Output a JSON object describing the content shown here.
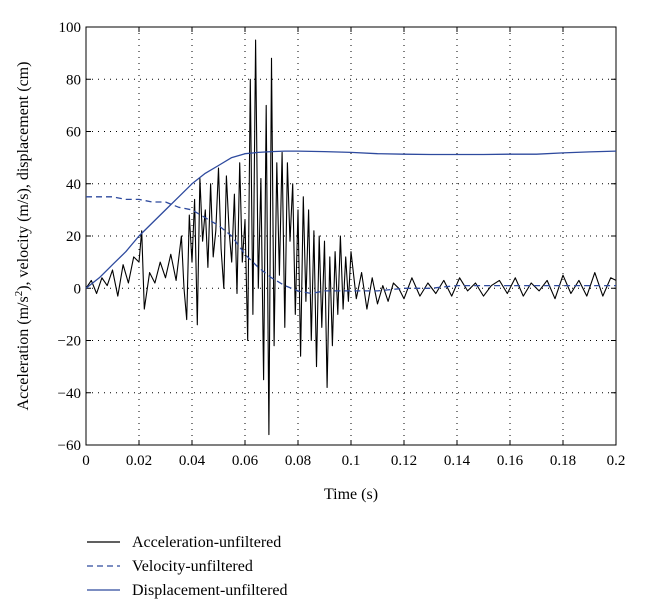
{
  "chart_data": {
    "type": "line",
    "xlabel": "Time (s)",
    "ylabel": {
      "before": "Acceleration (m/s",
      "sup": "2",
      "after": "), velocity (m/s), displacement (cm)"
    },
    "xlim": [
      0,
      0.2
    ],
    "ylim": [
      -60,
      100
    ],
    "x_ticks": [
      0,
      0.02,
      0.04,
      0.06,
      0.08,
      0.1,
      0.12,
      0.14,
      0.16,
      0.18,
      0.2
    ],
    "x_tick_labels": [
      "0",
      "0.02",
      "0.04",
      "0.06",
      "0.08",
      "0.1",
      "0.12",
      "0.14",
      "0.16",
      "0.18",
      "0.2"
    ],
    "y_ticks": [
      -60,
      -40,
      -20,
      0,
      20,
      40,
      60,
      80,
      100
    ],
    "y_tick_labels": [
      "−60",
      "−40",
      "−20",
      "0",
      "20",
      "40",
      "60",
      "80",
      "100"
    ],
    "grid": "dotted",
    "legend_position": "below",
    "series": [
      {
        "name": "Acceleration-unfiltered",
        "color": "#000000",
        "style": "solid",
        "x": [
          0,
          0.002,
          0.004,
          0.006,
          0.008,
          0.01,
          0.012,
          0.014,
          0.016,
          0.018,
          0.02,
          0.021,
          0.022,
          0.024,
          0.026,
          0.028,
          0.03,
          0.032,
          0.034,
          0.036,
          0.037,
          0.038,
          0.039,
          0.04,
          0.041,
          0.042,
          0.043,
          0.044,
          0.045,
          0.046,
          0.047,
          0.048,
          0.049,
          0.05,
          0.051,
          0.052,
          0.053,
          0.054,
          0.055,
          0.056,
          0.057,
          0.058,
          0.059,
          0.06,
          0.061,
          0.062,
          0.063,
          0.064,
          0.065,
          0.066,
          0.067,
          0.068,
          0.069,
          0.07,
          0.071,
          0.072,
          0.073,
          0.074,
          0.075,
          0.076,
          0.077,
          0.078,
          0.079,
          0.08,
          0.081,
          0.082,
          0.083,
          0.084,
          0.085,
          0.086,
          0.087,
          0.088,
          0.089,
          0.09,
          0.091,
          0.092,
          0.093,
          0.094,
          0.095,
          0.096,
          0.097,
          0.098,
          0.099,
          0.1,
          0.102,
          0.104,
          0.106,
          0.108,
          0.11,
          0.112,
          0.114,
          0.116,
          0.118,
          0.12,
          0.123,
          0.126,
          0.129,
          0.132,
          0.135,
          0.138,
          0.141,
          0.144,
          0.147,
          0.15,
          0.153,
          0.156,
          0.159,
          0.162,
          0.165,
          0.168,
          0.171,
          0.174,
          0.177,
          0.18,
          0.183,
          0.186,
          0.189,
          0.192,
          0.195,
          0.198,
          0.2
        ],
        "y": [
          0,
          3,
          -2,
          4,
          1,
          7,
          -3,
          9,
          2,
          12,
          10,
          22,
          -8,
          6,
          2,
          10,
          4,
          13,
          3,
          20,
          0,
          -12,
          28,
          10,
          34,
          -14,
          42,
          18,
          30,
          8,
          40,
          12,
          22,
          46,
          15,
          0,
          43,
          22,
          10,
          36,
          -2,
          48,
          10,
          26,
          -20,
          80,
          -10,
          95,
          0,
          42,
          -35,
          70,
          -56,
          88,
          -22,
          48,
          5,
          52,
          -15,
          48,
          18,
          40,
          -10,
          30,
          -26,
          35,
          -5,
          30,
          -20,
          22,
          -30,
          20,
          -15,
          18,
          -38,
          12,
          -22,
          14,
          -10,
          20,
          -8,
          12,
          -5,
          14,
          -4,
          6,
          -8,
          4,
          -6,
          1,
          -5,
          2,
          0,
          -4,
          4,
          -3,
          2,
          -2,
          3,
          -3,
          4,
          -1,
          2,
          -3,
          1,
          3,
          -2,
          4,
          -3,
          2,
          -1,
          3,
          -4,
          5,
          -2,
          3,
          -3,
          6,
          -3,
          4,
          3
        ]
      },
      {
        "name": "Velocity-unfiltered",
        "color": "#2e4a9e",
        "style": "dashed",
        "x": [
          0,
          0.005,
          0.01,
          0.015,
          0.02,
          0.025,
          0.03,
          0.035,
          0.04,
          0.045,
          0.05,
          0.055,
          0.06,
          0.065,
          0.07,
          0.075,
          0.08,
          0.085,
          0.09,
          0.1,
          0.11,
          0.12,
          0.13,
          0.14,
          0.15,
          0.16,
          0.17,
          0.18,
          0.19,
          0.2
        ],
        "y": [
          35,
          35,
          35,
          34,
          34,
          33,
          33,
          31,
          30,
          27,
          24,
          20,
          13,
          8,
          4,
          1,
          -1,
          -2,
          -1,
          -1,
          -1,
          0,
          0,
          1,
          1,
          1,
          1,
          1,
          1,
          1
        ]
      },
      {
        "name": "Displacement-unfiltered",
        "color": "#2e4a9e",
        "style": "solid",
        "x": [
          0,
          0.005,
          0.01,
          0.015,
          0.02,
          0.025,
          0.03,
          0.035,
          0.04,
          0.045,
          0.05,
          0.055,
          0.06,
          0.065,
          0.07,
          0.075,
          0.08,
          0.09,
          0.1,
          0.11,
          0.12,
          0.13,
          0.14,
          0.15,
          0.16,
          0.17,
          0.18,
          0.19,
          0.2
        ],
        "y": [
          0,
          4,
          9,
          14,
          20,
          25,
          30,
          35,
          40,
          44,
          47,
          50,
          51.5,
          52,
          52.3,
          52.5,
          52.5,
          52.3,
          52,
          51.5,
          51.3,
          51.2,
          51.2,
          51.2,
          51.3,
          51.3,
          51.8,
          52.2,
          52.5
        ]
      }
    ]
  }
}
